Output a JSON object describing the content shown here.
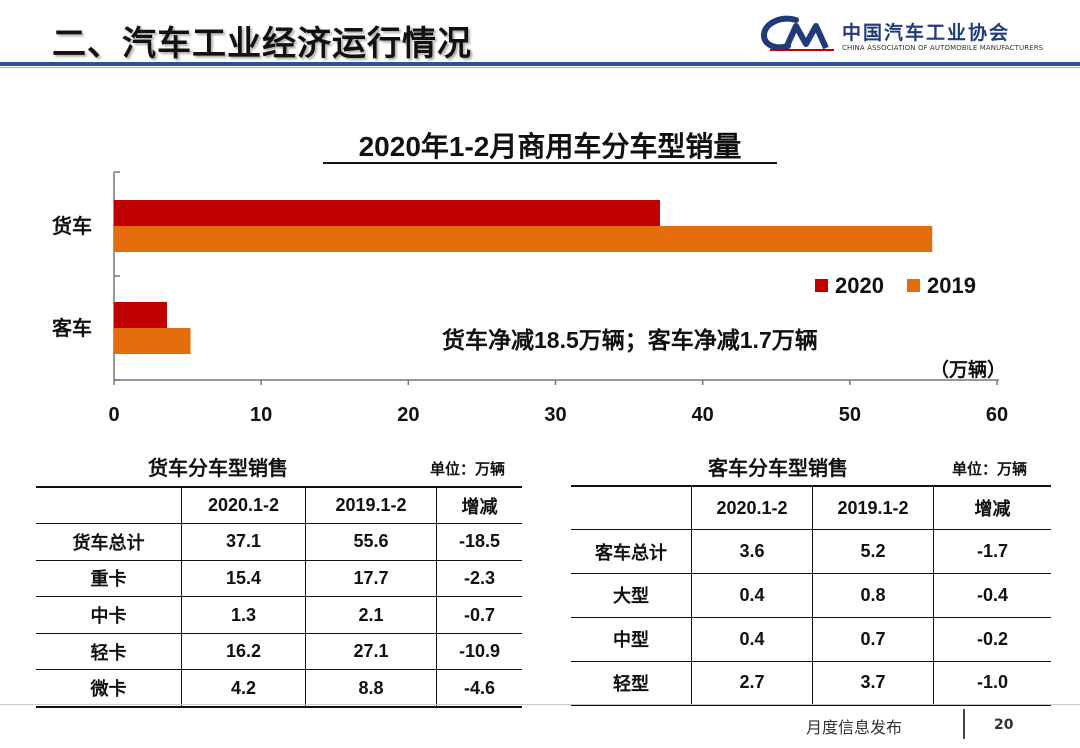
{
  "header": {
    "title": "二、汽车工业经济运行情况",
    "logo_mark": "CAAM",
    "logo_cn": "中国汽车工业协会",
    "logo_en": "CHINA ASSOCIATION OF AUTOMOBILE MANUFACTURERS"
  },
  "colors": {
    "series_2020": "#c00000",
    "series_2019": "#e46c0a",
    "rule": "#2c4f9e",
    "logo": "#1f3b7a"
  },
  "chart_data": {
    "type": "bar",
    "orientation": "horizontal",
    "title": "2020年1-2月商用车分车型销量",
    "categories": [
      "货车",
      "客车"
    ],
    "series": [
      {
        "name": "2020",
        "values": [
          37.1,
          3.6
        ]
      },
      {
        "name": "2019",
        "values": [
          55.6,
          5.2
        ]
      }
    ],
    "xlim": [
      0,
      60
    ],
    "xticks": [
      "0",
      "10",
      "20",
      "30",
      "40",
      "50",
      "60"
    ],
    "unit_label": "（万辆）",
    "annotation": "货车净减18.5万辆；客车净减1.7万辆",
    "legend_position": "right",
    "grid": false
  },
  "truck_table": {
    "title": "货车分车型销售",
    "unit": "单位：万辆",
    "headers": [
      "",
      "2020.1-2",
      "2019.1-2",
      "增减"
    ],
    "rows": [
      [
        "货车总计",
        "37.1",
        "55.6",
        "-18.5"
      ],
      [
        "重卡",
        "15.4",
        "17.7",
        "-2.3"
      ],
      [
        "中卡",
        "1.3",
        "2.1",
        "-0.7"
      ],
      [
        "轻卡",
        "16.2",
        "27.1",
        "-10.9"
      ],
      [
        "微卡",
        "4.2",
        "8.8",
        "-4.6"
      ]
    ]
  },
  "bus_table": {
    "title": "客车分车型销售",
    "unit": "单位：万辆",
    "headers": [
      "",
      "2020.1-2",
      "2019.1-2",
      "增减"
    ],
    "rows": [
      [
        "客车总计",
        "3.6",
        "5.2",
        "-1.7"
      ],
      [
        "大型",
        "0.4",
        "0.8",
        "-0.4"
      ],
      [
        "中型",
        "0.4",
        "0.7",
        "-0.2"
      ],
      [
        "轻型",
        "2.7",
        "3.7",
        "-1.0"
      ]
    ]
  },
  "footer": {
    "label": "月度信息发布",
    "page": "20"
  }
}
